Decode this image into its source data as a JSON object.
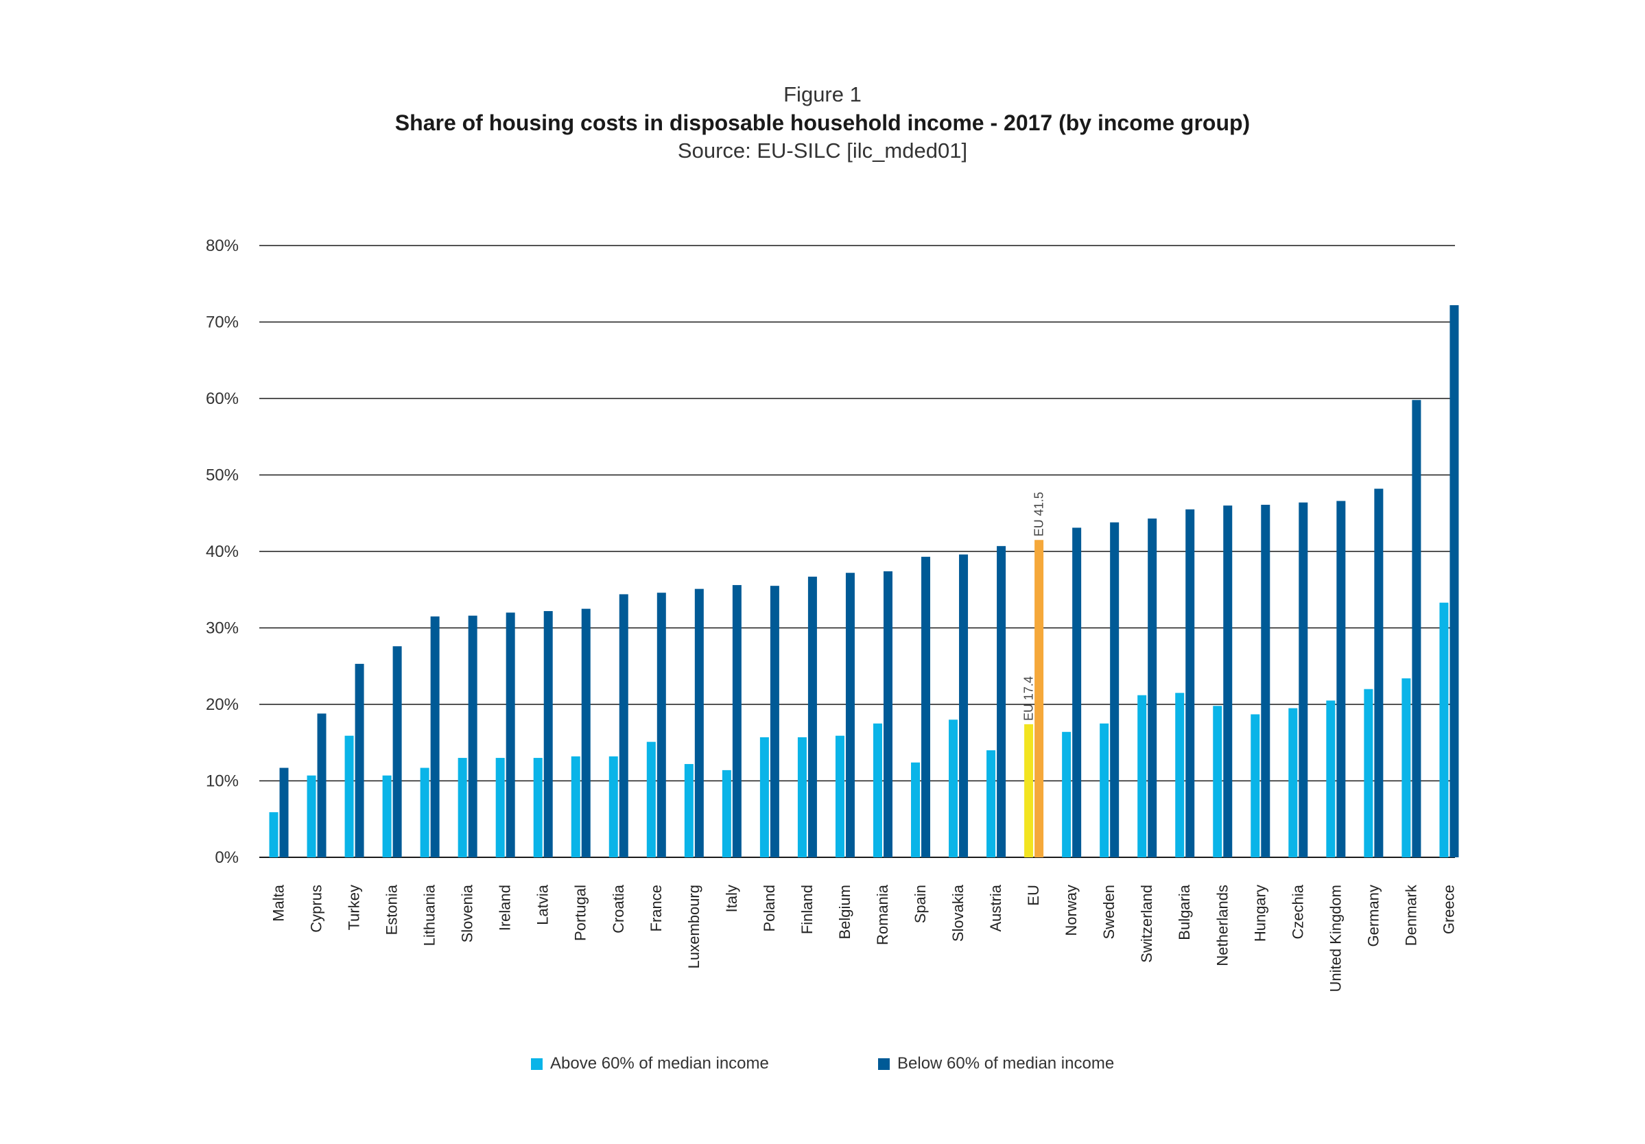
{
  "figure_label": "Figure 1",
  "title": "Share of housing costs in disposable household income - 2017 (by income group)",
  "source": "Source: EU-SILC [ilc_mded01]",
  "colors": {
    "above": "#0ab4e8",
    "below": "#005a96",
    "eu_above": "#f2e420",
    "eu_below": "#f5a83a",
    "gridline": "#1a1a1a"
  },
  "chart_data": {
    "type": "bar",
    "title": "Share of housing costs in disposable household income - 2017 (by income group)",
    "ylim": [
      0,
      80
    ],
    "yticks": [
      0,
      10,
      20,
      30,
      40,
      50,
      60,
      70,
      80
    ],
    "ytick_labels": [
      "0%",
      "10%",
      "20%",
      "30%",
      "40%",
      "50%",
      "60%",
      "70%",
      "80%"
    ],
    "grid": true,
    "legend_position": "bottom",
    "categories": [
      "Malta",
      "Cyprus",
      "Turkey",
      "Estonia",
      "Lithuania",
      "Slovenia",
      "Ireland",
      "Latvia",
      "Portugal",
      "Croatia",
      "France",
      "Luxembourg",
      "Italy",
      "Poland",
      "Finland",
      "Belgium",
      "Romania",
      "Spain",
      "Slovakia",
      "Austria",
      "EU",
      "Norway",
      "Sweden",
      "Switzerland",
      "Bulgaria",
      "Netherlands",
      "Hungary",
      "Czechia",
      "United Kingdom",
      "Germany",
      "Denmark",
      "Greece"
    ],
    "series": [
      {
        "name": "Above 60% of median income",
        "values": [
          5.9,
          10.7,
          15.9,
          10.7,
          11.7,
          13.0,
          13.0,
          13.0,
          13.2,
          13.2,
          15.1,
          12.2,
          11.4,
          15.7,
          15.7,
          15.9,
          17.5,
          12.4,
          18.0,
          14.0,
          17.4,
          16.4,
          17.5,
          21.2,
          21.5,
          19.8,
          18.7,
          19.5,
          20.5,
          22.0,
          23.4,
          33.3
        ]
      },
      {
        "name": "Below 60% of median income",
        "values": [
          11.7,
          18.8,
          25.3,
          27.6,
          31.5,
          31.6,
          32.0,
          32.2,
          32.5,
          34.4,
          34.6,
          35.1,
          35.6,
          35.5,
          36.7,
          37.2,
          37.4,
          39.3,
          39.6,
          40.7,
          41.5,
          43.1,
          43.8,
          44.3,
          45.5,
          46.0,
          46.1,
          46.4,
          46.6,
          48.2,
          59.8,
          72.2
        ]
      }
    ],
    "annotations": [
      {
        "category": "EU",
        "series": "Above 60% of median income",
        "text": "EU 17.4"
      },
      {
        "category": "EU",
        "series": "Below 60% of median income",
        "text": "EU 41.5"
      }
    ]
  }
}
